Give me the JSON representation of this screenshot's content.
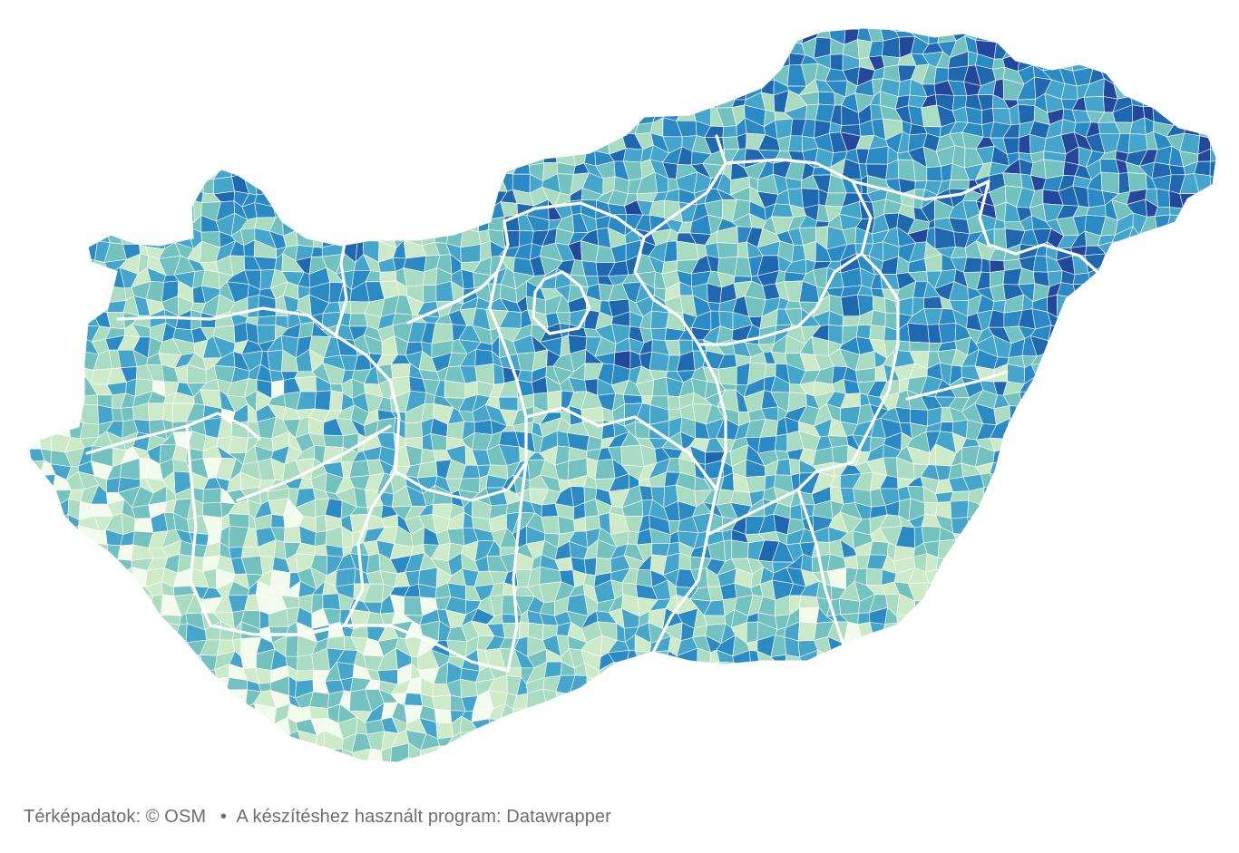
{
  "map": {
    "region": "Hungary",
    "level": "settlements",
    "palette": [
      "#f3fbec",
      "#cdebc8",
      "#a9dcc0",
      "#74c2c0",
      "#45a5ca",
      "#2b89c4",
      "#1f68b0",
      "#23479a"
    ],
    "border_color": "#ffffff"
  },
  "footer": {
    "map_data": "Térképadatok: © OSM",
    "separator": "•",
    "tool_credit": "A készítéshez használt program: Datawrapper"
  }
}
